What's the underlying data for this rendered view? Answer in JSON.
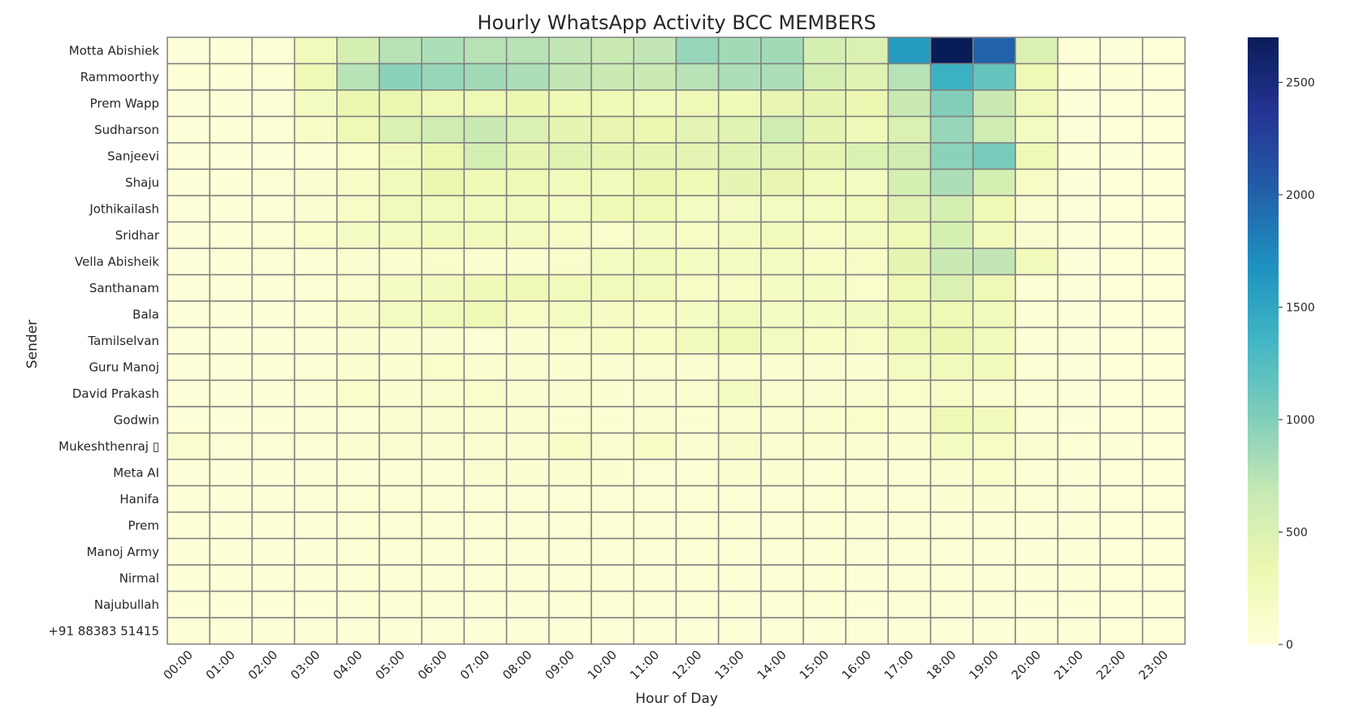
{
  "chart_data": {
    "type": "heatmap",
    "title": "Hourly WhatsApp Activity BCC MEMBERS",
    "xlabel": "Hour of Day",
    "ylabel": "Sender",
    "colormap": "YlGnBu",
    "cell_border_color": "#808080",
    "vmin": 0,
    "vmax": 2700,
    "colorbar_ticks": [
      0,
      500,
      1000,
      1500,
      2000,
      2500
    ],
    "x": [
      "00:00",
      "01:00",
      "02:00",
      "03:00",
      "04:00",
      "05:00",
      "06:00",
      "07:00",
      "08:00",
      "09:00",
      "10:00",
      "11:00",
      "12:00",
      "13:00",
      "14:00",
      "15:00",
      "16:00",
      "17:00",
      "18:00",
      "19:00",
      "20:00",
      "21:00",
      "22:00",
      "23:00"
    ],
    "y": [
      "Motta Abishiek",
      "Rammoorthy",
      "Prem Wapp",
      "Sudharson",
      "Sanjeevi",
      "Shaju",
      "Jothikailash",
      "Sridhar",
      "Vella Abisheik",
      "Santhanam",
      "Bala",
      "Tamilselvan",
      "Guru Manoj",
      "David Prakash",
      "Godwin",
      "Mukeshthenraj ▯",
      "Meta AI",
      "Hanifa",
      "Prem",
      "Manoj Army",
      "Nirmal",
      "Najubullah",
      "+91 88383 51415"
    ],
    "values": [
      [
        10,
        15,
        30,
        250,
        550,
        750,
        800,
        750,
        750,
        700,
        650,
        700,
        900,
        850,
        850,
        550,
        500,
        1600,
        2700,
        2000,
        500,
        20,
        10,
        5
      ],
      [
        15,
        20,
        50,
        300,
        750,
        950,
        900,
        850,
        800,
        700,
        650,
        650,
        750,
        800,
        800,
        550,
        450,
        750,
        1400,
        1150,
        300,
        20,
        15,
        5
      ],
      [
        10,
        15,
        30,
        200,
        350,
        350,
        300,
        300,
        350,
        300,
        300,
        250,
        280,
        300,
        380,
        400,
        350,
        650,
        1000,
        650,
        250,
        10,
        5,
        5
      ],
      [
        10,
        15,
        30,
        150,
        300,
        500,
        600,
        650,
        500,
        400,
        380,
        350,
        420,
        450,
        600,
        400,
        280,
        500,
        900,
        600,
        200,
        10,
        5,
        5
      ],
      [
        10,
        10,
        10,
        50,
        120,
        250,
        350,
        550,
        400,
        450,
        400,
        400,
        420,
        450,
        450,
        400,
        500,
        600,
        950,
        1050,
        300,
        50,
        10,
        5
      ],
      [
        10,
        15,
        30,
        80,
        150,
        250,
        350,
        300,
        300,
        250,
        250,
        350,
        300,
        400,
        380,
        250,
        200,
        550,
        800,
        550,
        150,
        10,
        5,
        5
      ],
      [
        10,
        15,
        30,
        80,
        150,
        250,
        250,
        250,
        250,
        200,
        300,
        300,
        200,
        180,
        200,
        200,
        250,
        450,
        550,
        300,
        80,
        10,
        5,
        5
      ],
      [
        10,
        15,
        50,
        120,
        180,
        200,
        250,
        250,
        200,
        150,
        120,
        180,
        150,
        200,
        250,
        150,
        200,
        300,
        550,
        250,
        80,
        10,
        5,
        5
      ],
      [
        10,
        15,
        30,
        50,
        80,
        100,
        120,
        80,
        100,
        120,
        200,
        250,
        200,
        200,
        200,
        150,
        150,
        400,
        650,
        700,
        250,
        10,
        5,
        5
      ],
      [
        10,
        10,
        20,
        50,
        100,
        180,
        220,
        280,
        300,
        250,
        250,
        250,
        150,
        150,
        180,
        180,
        120,
        300,
        500,
        300,
        50,
        10,
        5,
        5
      ],
      [
        10,
        10,
        20,
        50,
        130,
        200,
        250,
        300,
        150,
        200,
        170,
        150,
        180,
        250,
        180,
        180,
        220,
        300,
        300,
        250,
        50,
        10,
        5,
        5
      ],
      [
        10,
        10,
        20,
        40,
        60,
        60,
        80,
        50,
        60,
        120,
        150,
        150,
        250,
        300,
        200,
        150,
        150,
        300,
        350,
        250,
        40,
        10,
        5,
        5
      ],
      [
        10,
        10,
        20,
        40,
        80,
        70,
        120,
        80,
        80,
        60,
        80,
        100,
        80,
        90,
        80,
        80,
        60,
        200,
        250,
        250,
        40,
        10,
        5,
        5
      ],
      [
        10,
        10,
        20,
        40,
        120,
        60,
        100,
        120,
        80,
        80,
        60,
        80,
        100,
        200,
        100,
        80,
        100,
        120,
        150,
        100,
        40,
        10,
        5,
        5
      ],
      [
        10,
        10,
        20,
        30,
        50,
        80,
        80,
        80,
        100,
        60,
        60,
        80,
        60,
        100,
        80,
        100,
        120,
        100,
        300,
        250,
        40,
        10,
        5,
        5
      ],
      [
        100,
        30,
        30,
        40,
        60,
        80,
        80,
        100,
        80,
        150,
        100,
        150,
        80,
        130,
        100,
        100,
        80,
        100,
        200,
        150,
        80,
        40,
        20,
        5
      ],
      [
        10,
        10,
        20,
        30,
        30,
        40,
        40,
        80,
        60,
        60,
        60,
        40,
        40,
        60,
        60,
        40,
        40,
        50,
        80,
        120,
        50,
        20,
        5,
        5
      ],
      [
        20,
        20,
        20,
        30,
        40,
        40,
        40,
        40,
        40,
        40,
        40,
        40,
        40,
        40,
        40,
        40,
        40,
        40,
        60,
        60,
        40,
        20,
        5,
        5
      ],
      [
        20,
        20,
        20,
        20,
        40,
        40,
        40,
        40,
        40,
        40,
        40,
        40,
        40,
        40,
        40,
        40,
        30,
        40,
        40,
        40,
        20,
        20,
        5,
        5
      ],
      [
        20,
        20,
        20,
        20,
        40,
        40,
        40,
        40,
        40,
        40,
        40,
        40,
        40,
        40,
        40,
        40,
        30,
        40,
        40,
        40,
        20,
        20,
        5,
        5
      ],
      [
        20,
        20,
        20,
        20,
        40,
        40,
        40,
        40,
        40,
        40,
        40,
        40,
        40,
        40,
        40,
        40,
        20,
        40,
        40,
        40,
        20,
        20,
        5,
        5
      ],
      [
        20,
        20,
        20,
        20,
        40,
        40,
        40,
        40,
        40,
        40,
        40,
        40,
        40,
        40,
        40,
        40,
        20,
        40,
        40,
        40,
        20,
        20,
        5,
        5
      ],
      [
        20,
        20,
        20,
        20,
        20,
        20,
        20,
        20,
        20,
        20,
        20,
        20,
        20,
        20,
        20,
        20,
        20,
        20,
        20,
        20,
        20,
        20,
        5,
        5
      ]
    ]
  }
}
